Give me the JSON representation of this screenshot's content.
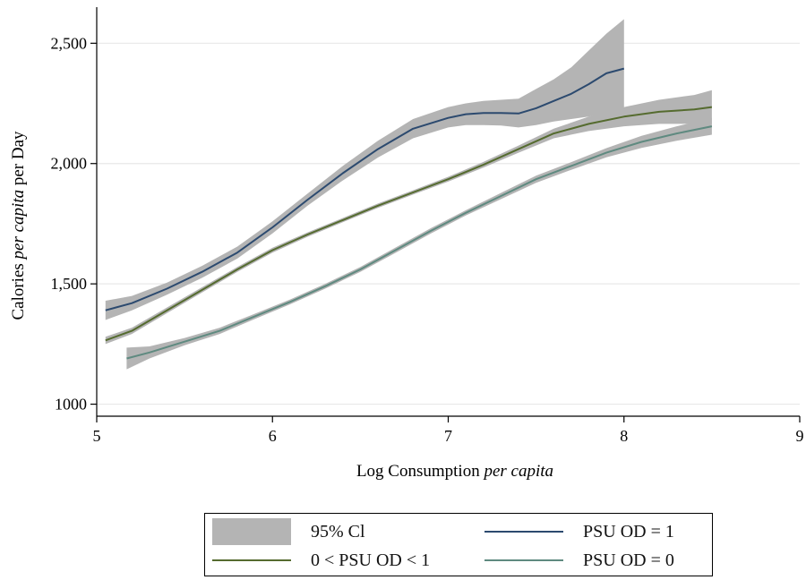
{
  "chart_data": {
    "type": "line",
    "title": "",
    "xlabel_main": "Log Consumption ",
    "xlabel_italic": "per capita",
    "ylabel_pre": "Calories ",
    "ylabel_italic": "per capita",
    "ylabel_post": " per Day",
    "xlim": [
      5,
      9
    ],
    "ylim": [
      950,
      2650
    ],
    "xticks": [
      5,
      6,
      7,
      8,
      9
    ],
    "xtick_labels": [
      "5",
      "6",
      "7",
      "8",
      "9"
    ],
    "yticks": [
      1000,
      1500,
      2000,
      2500
    ],
    "ytick_labels": [
      "1000",
      "1,500",
      "2,000",
      "2,500"
    ],
    "grid": "horizontal",
    "legend_position": "bottom",
    "legend_ci_label": "95% Cl",
    "colors": {
      "ci": "#b4b4b4",
      "psu1": "#2c4a6f",
      "psu_mid": "#556b2f",
      "psu0": "#5f8a80",
      "grid": "#e8e8e8"
    },
    "series": [
      {
        "name": "PSU OD = 1",
        "color": "#2c4a6f",
        "x": [
          5.05,
          5.2,
          5.4,
          5.6,
          5.8,
          6.0,
          6.2,
          6.4,
          6.6,
          6.8,
          7.0,
          7.1,
          7.2,
          7.3,
          7.4,
          7.5,
          7.6,
          7.7,
          7.8,
          7.9,
          8.0
        ],
        "y": [
          1390,
          1420,
          1480,
          1550,
          1630,
          1735,
          1850,
          1960,
          2060,
          2145,
          2190,
          2205,
          2210,
          2210,
          2208,
          2230,
          2260,
          2290,
          2330,
          2375,
          2395
        ],
        "ci_upper": [
          1430,
          1450,
          1505,
          1575,
          1655,
          1760,
          1875,
          1990,
          2095,
          2185,
          2235,
          2250,
          2260,
          2265,
          2270,
          2310,
          2350,
          2400,
          2470,
          2540,
          2600
        ],
        "ci_lower": [
          1350,
          1390,
          1455,
          1525,
          1605,
          1710,
          1825,
          1930,
          2025,
          2105,
          2150,
          2160,
          2160,
          2158,
          2150,
          2160,
          2175,
          2185,
          2195,
          2210,
          2215
        ]
      },
      {
        "name": "0 < PSU OD < 1",
        "color": "#556b2f",
        "x": [
          5.05,
          5.2,
          5.4,
          5.6,
          5.8,
          6.0,
          6.2,
          6.4,
          6.6,
          6.8,
          7.0,
          7.2,
          7.4,
          7.6,
          7.8,
          8.0,
          8.2,
          8.4,
          8.5
        ],
        "y": [
          1265,
          1305,
          1390,
          1475,
          1560,
          1640,
          1705,
          1765,
          1825,
          1880,
          1935,
          1995,
          2060,
          2125,
          2165,
          2195,
          2215,
          2225,
          2235
        ],
        "ci_upper": [
          1280,
          1318,
          1402,
          1486,
          1570,
          1650,
          1714,
          1774,
          1834,
          1889,
          1945,
          2007,
          2075,
          2145,
          2195,
          2235,
          2265,
          2285,
          2305
        ],
        "ci_lower": [
          1250,
          1292,
          1378,
          1464,
          1550,
          1630,
          1696,
          1756,
          1816,
          1871,
          1925,
          1983,
          2045,
          2105,
          2135,
          2155,
          2165,
          2165,
          2165
        ]
      },
      {
        "name": "PSU OD = 0",
        "color": "#5f8a80",
        "x": [
          5.17,
          5.3,
          5.5,
          5.7,
          5.9,
          6.1,
          6.3,
          6.5,
          6.7,
          6.9,
          7.1,
          7.3,
          7.5,
          7.7,
          7.9,
          8.1,
          8.3,
          8.5
        ],
        "y": [
          1190,
          1215,
          1260,
          1305,
          1365,
          1425,
          1490,
          1560,
          1640,
          1720,
          1795,
          1865,
          1935,
          1990,
          2045,
          2090,
          2125,
          2155
        ],
        "ci_upper": [
          1235,
          1240,
          1275,
          1318,
          1376,
          1435,
          1500,
          1570,
          1651,
          1731,
          1806,
          1878,
          1950,
          2006,
          2064,
          2115,
          2155,
          2190
        ],
        "ci_lower": [
          1145,
          1190,
          1245,
          1292,
          1354,
          1415,
          1480,
          1550,
          1629,
          1709,
          1784,
          1852,
          1920,
          1974,
          2026,
          2065,
          2095,
          2120
        ]
      }
    ]
  }
}
